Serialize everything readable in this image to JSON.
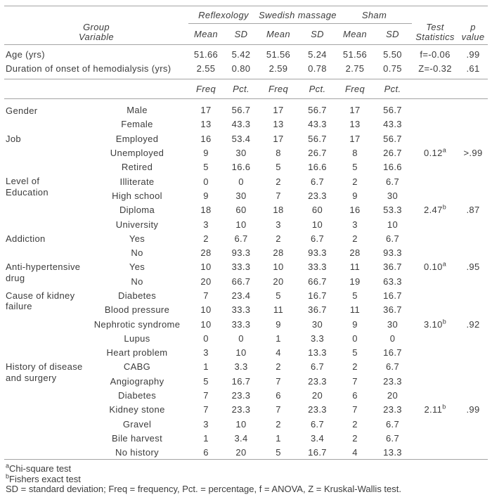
{
  "table": {
    "header": {
      "group_line1": "Group",
      "group_line2": "Variable",
      "groups": [
        "Reflexology",
        "Swedish massage",
        "Sham"
      ],
      "mean_label": "Mean",
      "sd_label": "SD",
      "freq_label": "Freq",
      "pct_label": "Pct.",
      "test_line1": "Test",
      "test_line2": "Statistics",
      "p_line1": "p",
      "p_line2": "value"
    },
    "continuous_rows": [
      {
        "label": "Age (yrs)",
        "values": [
          "51.66",
          "5.42",
          "51.56",
          "5.24",
          "51.56",
          "5.50"
        ],
        "test": "f=-0.06",
        "p": ".99"
      },
      {
        "label": "Duration of onset of hemodialysis (yrs)",
        "values": [
          "2.55",
          "0.80",
          "2.59",
          "0.78",
          "2.75",
          "0.75"
        ],
        "test": "Z=-0.32",
        "p": ".61"
      }
    ],
    "categorical_blocks": [
      {
        "group_lines": [
          "Gender"
        ],
        "rows": [
          {
            "variable": "Male",
            "values": [
              "17",
              "56.7",
              "17",
              "56.7",
              "17",
              "56.7"
            ]
          },
          {
            "variable": "Female",
            "values": [
              "13",
              "43.3",
              "13",
              "43.3",
              "13",
              "43.3"
            ]
          }
        ]
      },
      {
        "group_lines": [
          "Job"
        ],
        "rows": [
          {
            "variable": "Employed",
            "values": [
              "16",
              "53.4",
              "17",
              "56.7",
              "17",
              "56.7"
            ]
          },
          {
            "variable": "Unemployed",
            "values": [
              "9",
              "30",
              "8",
              "26.7",
              "8",
              "26.7"
            ],
            "test": "0.12",
            "test_sup": "a",
            "p": ">.99"
          },
          {
            "variable": "Retired",
            "values": [
              "5",
              "16.6",
              "5",
              "16.6",
              "5",
              "16.6"
            ]
          }
        ]
      },
      {
        "group_lines": [
          "Level of",
          "Education"
        ],
        "rows": [
          {
            "variable": "Illiterate",
            "values": [
              "0",
              "0",
              "2",
              "6.7",
              "2",
              "6.7"
            ]
          },
          {
            "variable": "High school",
            "values": [
              "9",
              "30",
              "7",
              "23.3",
              "9",
              "30"
            ]
          },
          {
            "variable": "Diploma",
            "values": [
              "18",
              "60",
              "18",
              "60",
              "16",
              "53.3"
            ],
            "test": "2.47",
            "test_sup": "b",
            "p": ".87"
          },
          {
            "variable": "University",
            "values": [
              "3",
              "10",
              "3",
              "10",
              "3",
              "10"
            ]
          }
        ]
      },
      {
        "group_lines": [
          "Addiction"
        ],
        "rows": [
          {
            "variable": "Yes",
            "values": [
              "2",
              "6.7",
              "2",
              "6.7",
              "2",
              "6.7"
            ]
          },
          {
            "variable": "No",
            "values": [
              "28",
              "93.3",
              "28",
              "93.3",
              "28",
              "93.3"
            ]
          }
        ]
      },
      {
        "group_lines": [
          "Anti-hypertensive",
          "drug"
        ],
        "rows": [
          {
            "variable": "Yes",
            "values": [
              "10",
              "33.3",
              "10",
              "33.3",
              "11",
              "36.7"
            ],
            "test": "0.10",
            "test_sup": "a",
            "p": ".95"
          },
          {
            "variable": "No",
            "values": [
              "20",
              "66.7",
              "20",
              "66.7",
              "19",
              "63.3"
            ]
          }
        ]
      },
      {
        "group_lines": [
          "Cause of kidney",
          "failure"
        ],
        "rows": [
          {
            "variable": "Diabetes",
            "values": [
              "7",
              "23.4",
              "5",
              "16.7",
              "5",
              "16.7"
            ]
          },
          {
            "variable": "Blood pressure",
            "values": [
              "10",
              "33.3",
              "11",
              "36.7",
              "11",
              "36.7"
            ]
          },
          {
            "variable": "Nephrotic syndrome",
            "values": [
              "10",
              "33.3",
              "9",
              "30",
              "9",
              "30"
            ],
            "test": "3.10",
            "test_sup": "b",
            "p": ".92"
          },
          {
            "variable": "Lupus",
            "values": [
              "0",
              "0",
              "1",
              "3.3",
              "0",
              "0"
            ]
          },
          {
            "variable": "Heart problem",
            "values": [
              "3",
              "10",
              "4",
              "13.3",
              "5",
              "16.7"
            ]
          }
        ]
      },
      {
        "group_lines": [
          "History of disease",
          "and surgery"
        ],
        "rows": [
          {
            "variable": "CABG",
            "values": [
              "1",
              "3.3",
              "2",
              "6.7",
              "2",
              "6.7"
            ]
          },
          {
            "variable": "Angiography",
            "values": [
              "5",
              "16.7",
              "7",
              "23.3",
              "7",
              "23.3"
            ]
          },
          {
            "variable": "Diabetes",
            "values": [
              "7",
              "23.3",
              "6",
              "20",
              "6",
              "20"
            ]
          },
          {
            "variable": "Kidney stone",
            "values": [
              "7",
              "23.3",
              "7",
              "23.3",
              "7",
              "23.3"
            ],
            "test": "2.11",
            "test_sup": "b",
            "p": ".99"
          },
          {
            "variable": "Gravel",
            "values": [
              "3",
              "10",
              "2",
              "6.7",
              "2",
              "6.7"
            ]
          },
          {
            "variable": "Bile harvest",
            "values": [
              "1",
              "3.4",
              "1",
              "3.4",
              "2",
              "6.7"
            ]
          },
          {
            "variable": "No history",
            "values": [
              "6",
              "20",
              "5",
              "16.7",
              "4",
              "13.3"
            ]
          }
        ]
      }
    ],
    "footnotes": [
      {
        "sup": "a",
        "text": "Chi-square test"
      },
      {
        "sup": "b",
        "text": "Fishers exact test"
      },
      {
        "sup": "",
        "text": "SD = standard deviation; Freq = frequency, Pct. = percentage, f = ANOVA, Z = Kruskal-Wallis test."
      }
    ]
  }
}
